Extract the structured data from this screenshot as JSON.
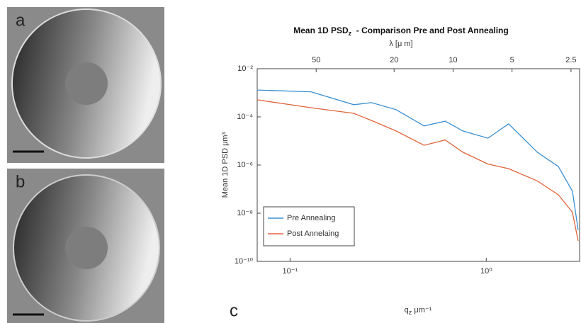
{
  "panel_labels": [
    "a",
    "b",
    "c"
  ],
  "chart_data": {
    "type": "line",
    "title": [
      "Mean 1D PSD",
      "z",
      "  - Comparison Pre and Post Annealing"
    ],
    "x2label": "λ [μ m]",
    "xlabel": [
      "q",
      "z",
      " μm⁻¹"
    ],
    "ylabel": "Mean 1D PSD μm³",
    "xscale": "log",
    "yscale": "log",
    "xlim": [
      0.068,
      2.99
    ],
    "xticks": [
      {
        "value": 0.1,
        "label": "10⁻¹"
      },
      {
        "value": 1,
        "label": "10⁰"
      }
    ],
    "x2lim": [
      100,
      2.26
    ],
    "x2ticks": [
      50,
      20,
      10,
      5,
      2.5
    ],
    "ylim": [
      1e-10,
      0.01
    ],
    "yticks": [
      {
        "value": 1e-10,
        "label": "10⁻¹⁰"
      },
      {
        "value": 1e-08,
        "label": "10⁻⁸"
      },
      {
        "value": 1e-06,
        "label": "10⁻⁶"
      },
      {
        "value": 0.0001,
        "label": "10⁻⁴"
      },
      {
        "value": 0.01,
        "label": "10⁻²"
      }
    ],
    "x": [
      0.068,
      0.128,
      0.211,
      0.26,
      0.347,
      0.482,
      0.618,
      0.76,
      1.02,
      1.3,
      1.82,
      2.33,
      2.75,
      2.94
    ],
    "series": [
      {
        "name": "Pre Annealing",
        "color": "#3a8fd0",
        "values": [
          0.0013,
          0.0011,
          0.00032,
          0.00039,
          0.0002,
          4.2e-05,
          6.6e-05,
          2.6e-05,
          1.3e-05,
          5.1e-05,
          3.4e-06,
          8.7e-07,
          8.2e-08,
          2e-09
        ]
      },
      {
        "name": "Post Annelaing",
        "color": "#e0643a",
        "values": [
          0.00051,
          0.00024,
          0.00014,
          7.1e-05,
          2.6e-05,
          6.6e-06,
          1.1e-05,
          3.4e-06,
          1.1e-06,
          7.1e-07,
          2.2e-07,
          5.8e-08,
          1.1e-08,
          7.1e-10
        ]
      }
    ],
    "legend": "lower left"
  }
}
